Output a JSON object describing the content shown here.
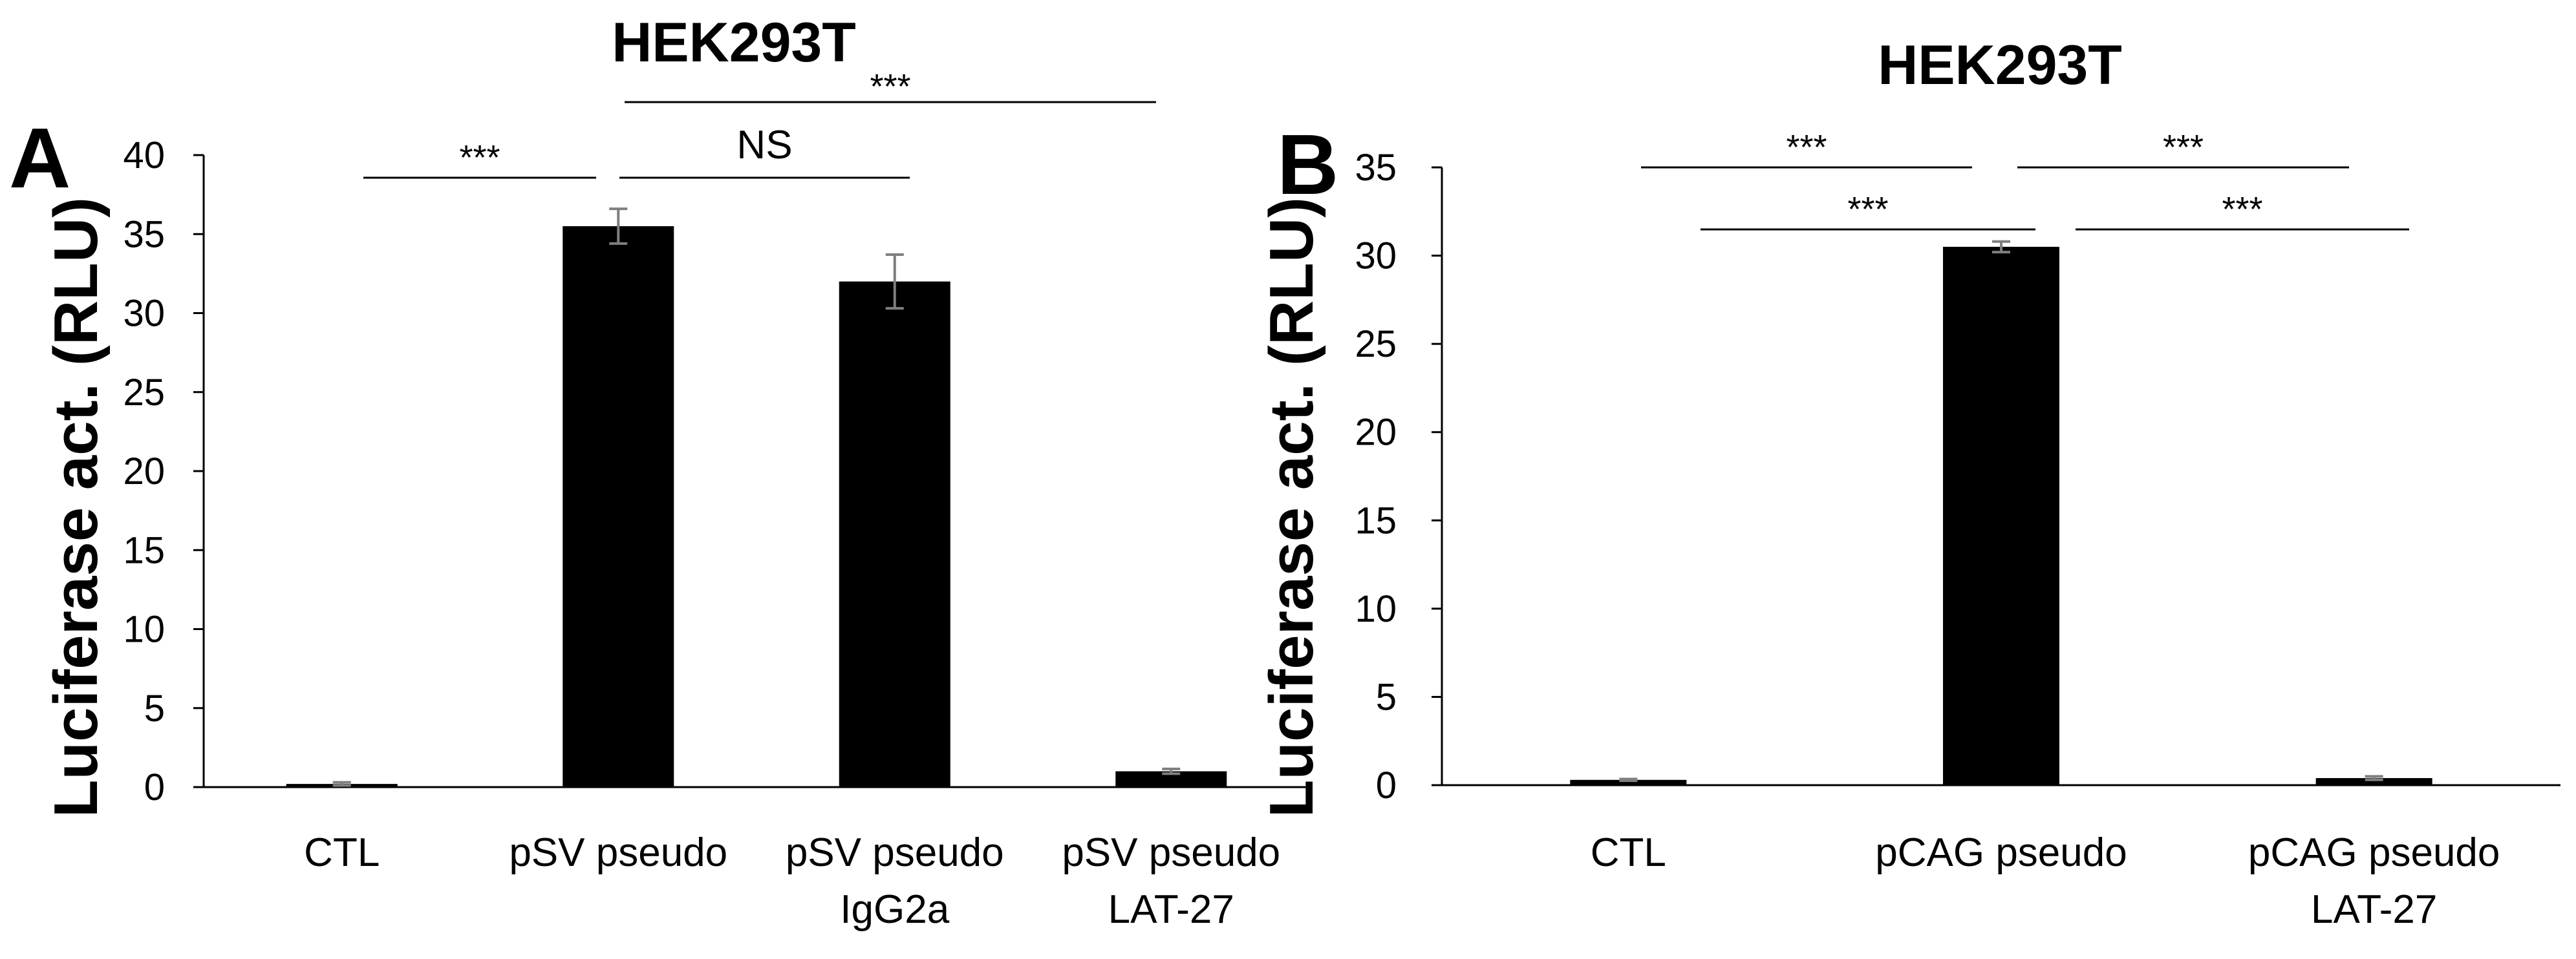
{
  "chart_data": [
    {
      "panel": "A",
      "type": "bar",
      "title": "HEK293T",
      "ylabel": "Luciferase act. (RLU)",
      "xlabel": "",
      "ylim": [
        0,
        40
      ],
      "yticks": [
        0,
        5,
        10,
        15,
        20,
        25,
        30,
        35,
        40
      ],
      "categories": [
        [
          "CTL"
        ],
        [
          "pSV pseudo"
        ],
        [
          "pSV pseudo",
          "IgG2a"
        ],
        [
          "pSV pseudo",
          "LAT-27"
        ]
      ],
      "series": [
        {
          "name": "Luciferase act.",
          "values": [
            0.2,
            35.5,
            32.0,
            1.0
          ],
          "errors": [
            0.1,
            1.1,
            1.7,
            0.15
          ],
          "color": "#000000"
        }
      ],
      "significance": [
        {
          "from": 0,
          "to": 1,
          "label": "***"
        },
        {
          "from": 1,
          "to": 2,
          "label": "NS"
        },
        {
          "from": 1,
          "to": 3,
          "label": "***"
        }
      ]
    },
    {
      "panel": "B",
      "type": "bar",
      "title": "HEK293T",
      "ylabel": "Luciferase act. (RLU)",
      "xlabel": "",
      "ylim": [
        0,
        35
      ],
      "yticks": [
        0,
        5,
        10,
        15,
        20,
        25,
        30,
        35
      ],
      "categories": [
        [
          "CTL"
        ],
        [
          "pCAG pseudo"
        ],
        [
          "pCAG pseudo",
          "LAT-27"
        ]
      ],
      "series": [
        {
          "name": "Luciferase act.",
          "values": [
            0.3,
            30.5,
            0.4
          ],
          "errors": [
            0.05,
            0.3,
            0.1
          ],
          "color": "#000000"
        }
      ],
      "significance": [
        {
          "from": 0,
          "to": 1,
          "label": "***"
        },
        {
          "from": 1,
          "to": 2,
          "label": "***"
        },
        {
          "from": 0,
          "to": 1,
          "label": "***"
        },
        {
          "from": 1,
          "to": 2,
          "label": "***"
        }
      ]
    }
  ]
}
